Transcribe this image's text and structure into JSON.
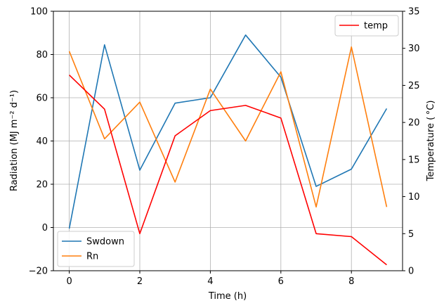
{
  "chart_data": {
    "type": "line",
    "x": [
      0,
      1,
      2,
      3,
      4,
      5,
      6,
      7,
      8,
      9
    ],
    "xlabel": "Time (h)",
    "xlim": [
      -0.45,
      9.45
    ],
    "xticks": [
      0,
      2,
      4,
      6,
      8
    ],
    "grid": true,
    "left_axis": {
      "ylabel": "Radiation (MJ m⁻² d⁻¹)",
      "ylim": [
        -20,
        100
      ],
      "yticks": [
        -20,
        0,
        20,
        40,
        60,
        80,
        100
      ],
      "legend_position": "lower-left",
      "series": [
        {
          "name": "Swdown",
          "color": "#1f77b4",
          "values": [
            -0.5,
            84.5,
            26.5,
            57.5,
            60,
            89,
            69.5,
            19,
            27,
            55
          ]
        },
        {
          "name": "Rn",
          "color": "#ff7f0e",
          "values": [
            81.5,
            41,
            58,
            21,
            64,
            40,
            72,
            9.5,
            83.5,
            9.5
          ]
        }
      ]
    },
    "right_axis": {
      "ylabel": "Temperature ( °C)",
      "ylim": [
        0,
        35
      ],
      "yticks": [
        0,
        5,
        10,
        15,
        20,
        25,
        30,
        35
      ],
      "legend_position": "upper-right",
      "series": [
        {
          "name": "temp",
          "color": "#ff0000",
          "values": [
            26.4,
            21.8,
            5.0,
            18.2,
            21.6,
            22.3,
            20.6,
            5.0,
            4.6,
            0.8
          ]
        }
      ]
    }
  }
}
